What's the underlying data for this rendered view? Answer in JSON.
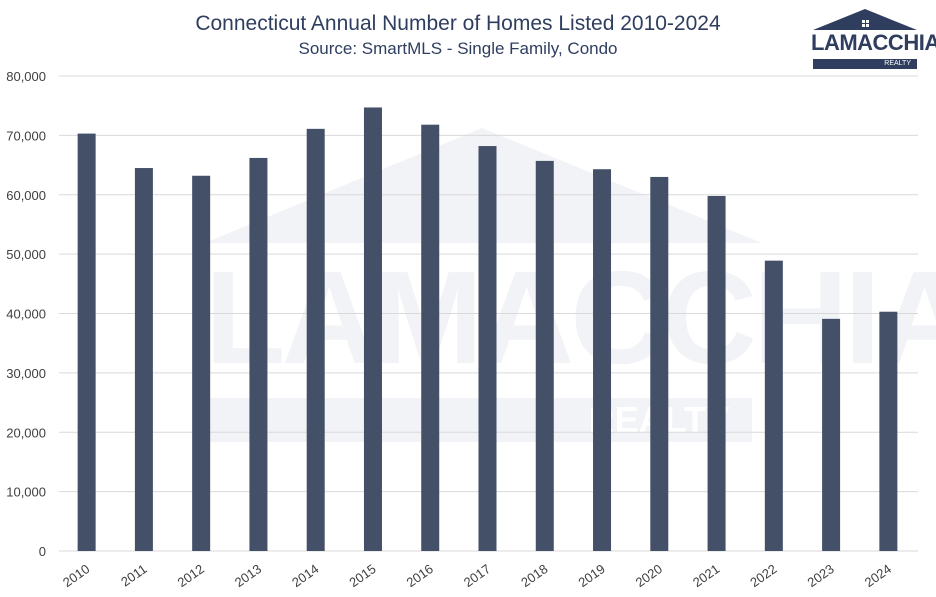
{
  "chart_data": {
    "type": "bar",
    "title": "Connecticut Annual Number of Homes Listed 2010-2024",
    "subtitle": "Source: SmartMLS - Single Family, Condo",
    "categories": [
      "2010",
      "2011",
      "2012",
      "2013",
      "2014",
      "2015",
      "2016",
      "2017",
      "2018",
      "2019",
      "2020",
      "2021",
      "2022",
      "2023",
      "2024"
    ],
    "values": [
      70300,
      64500,
      63200,
      66200,
      71100,
      74700,
      71800,
      68200,
      65700,
      64300,
      63000,
      59800,
      48900,
      39100,
      40300
    ],
    "ylim": [
      0,
      80000
    ],
    "yticks": [
      "0",
      "10,000",
      "20,000",
      "30,000",
      "40,000",
      "50,000",
      "60,000",
      "70,000",
      "80,000"
    ],
    "grid": true,
    "bar_color": "#435068",
    "legend": "none"
  },
  "logo": {
    "brand": "LAMACCHIA",
    "sub": "REALTY",
    "color": "#2f3e5f"
  },
  "watermark": {
    "brand": "LAMACCHIA",
    "sub": "REALTY"
  }
}
